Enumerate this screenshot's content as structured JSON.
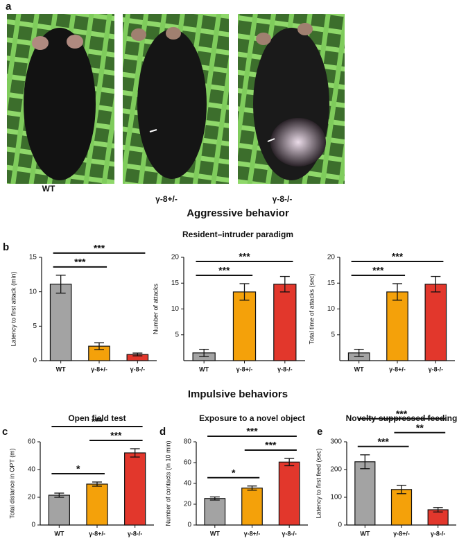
{
  "figure": {
    "panel_labels": [
      "a",
      "b",
      "c",
      "d",
      "e"
    ],
    "photo_labels": [
      "WT",
      "γ-8+/-",
      "γ-8-/-"
    ],
    "headings": {
      "aggressive": "Aggressive behavior",
      "paradigm": "Resident–intruder paradigm",
      "impulsive": "Impulsive behaviors"
    }
  },
  "chart_data": [
    {
      "type": "bar",
      "y_label": "Latency to first attack (min)",
      "categories": [
        "WT",
        "γ-8+/-",
        "γ-8-/-"
      ],
      "values": [
        11.1,
        2.1,
        0.9
      ],
      "errors": [
        1.3,
        0.5,
        0.2
      ],
      "colors": [
        "#a3a3a3",
        "#f4a10a",
        "#e2372c"
      ],
      "ylim": [
        0,
        15
      ],
      "yticks": [
        0,
        5,
        10,
        15
      ],
      "annotations": [
        {
          "between": [
            "WT",
            "γ-8+/-"
          ],
          "label": "***"
        },
        {
          "between": [
            "WT",
            "γ-8-/-"
          ],
          "label": "***"
        }
      ]
    },
    {
      "type": "bar",
      "y_label": "Number of attacks",
      "categories": [
        "WT",
        "γ-8+/-",
        "γ-8-/-"
      ],
      "values": [
        1.5,
        13.3,
        14.8
      ],
      "errors": [
        0.7,
        1.6,
        1.5
      ],
      "colors": [
        "#a3a3a3",
        "#f4a10a",
        "#e2372c"
      ],
      "ylim": [
        0,
        20
      ],
      "yticks": [
        5,
        10,
        15,
        20
      ],
      "annotations": [
        {
          "between": [
            "WT",
            "γ-8+/-"
          ],
          "label": "***"
        },
        {
          "between": [
            "WT",
            "γ-8-/-"
          ],
          "label": "***"
        }
      ]
    },
    {
      "type": "bar",
      "y_label": "Total time of attacks (sec)",
      "categories": [
        "WT",
        "γ-8+/-",
        "γ-8-/-"
      ],
      "values": [
        1.5,
        13.3,
        14.8
      ],
      "errors": [
        0.7,
        1.6,
        1.5
      ],
      "colors": [
        "#a3a3a3",
        "#f4a10a",
        "#e2372c"
      ],
      "ylim": [
        0,
        20
      ],
      "yticks": [
        5,
        10,
        15,
        20
      ],
      "annotations": [
        {
          "between": [
            "WT",
            "γ-8+/-"
          ],
          "label": "***"
        },
        {
          "between": [
            "WT",
            "γ-8-/-"
          ],
          "label": "***"
        }
      ]
    },
    {
      "type": "bar",
      "title": "Open field test",
      "y_label": "Total distance in OPT (m)",
      "categories": [
        "WT",
        "γ-8+/-",
        "γ-8-/-"
      ],
      "values": [
        21.5,
        29.5,
        52
      ],
      "errors": [
        1.5,
        1.5,
        3
      ],
      "colors": [
        "#a3a3a3",
        "#f4a10a",
        "#e2372c"
      ],
      "ylim": [
        0,
        60
      ],
      "yticks": [
        0,
        20,
        40,
        60
      ],
      "annotations": [
        {
          "between": [
            "WT",
            "γ-8+/-"
          ],
          "label": "*"
        },
        {
          "between": [
            "γ-8+/-",
            "γ-8-/-"
          ],
          "label": "***"
        },
        {
          "between": [
            "WT",
            "γ-8-/-"
          ],
          "label": "***"
        }
      ]
    },
    {
      "type": "bar",
      "title": "Exposure to a novel object",
      "y_label": "Number of contacts (in 10 min)",
      "categories": [
        "WT",
        "γ-8+/-",
        "γ-8-/-"
      ],
      "values": [
        25.5,
        35.5,
        60.5
      ],
      "errors": [
        1.5,
        2,
        3.5
      ],
      "colors": [
        "#a3a3a3",
        "#f4a10a",
        "#e2372c"
      ],
      "ylim": [
        0,
        80
      ],
      "yticks": [
        0,
        20,
        40,
        60,
        80
      ],
      "annotations": [
        {
          "between": [
            "WT",
            "γ-8+/-"
          ],
          "label": "*"
        },
        {
          "between": [
            "γ-8+/-",
            "γ-8-/-"
          ],
          "label": "***"
        },
        {
          "between": [
            "WT",
            "γ-8-/-"
          ],
          "label": "***"
        }
      ]
    },
    {
      "type": "bar",
      "title": "Novelty-suppressed feeding",
      "y_label": "Latency to first feed (sec)",
      "categories": [
        "WT",
        "γ-8+/-",
        "γ-8-/-"
      ],
      "values": [
        228,
        128,
        55
      ],
      "errors": [
        25,
        15,
        8
      ],
      "colors": [
        "#a3a3a3",
        "#f4a10a",
        "#e2372c"
      ],
      "ylim": [
        0,
        300
      ],
      "yticks": [
        0,
        100,
        200,
        300
      ],
      "annotations": [
        {
          "between": [
            "WT",
            "γ-8+/-"
          ],
          "label": "***"
        },
        {
          "between": [
            "γ-8+/-",
            "γ-8-/-"
          ],
          "label": "**"
        },
        {
          "between": [
            "WT",
            "γ-8-/-"
          ],
          "label": "***"
        }
      ]
    }
  ]
}
